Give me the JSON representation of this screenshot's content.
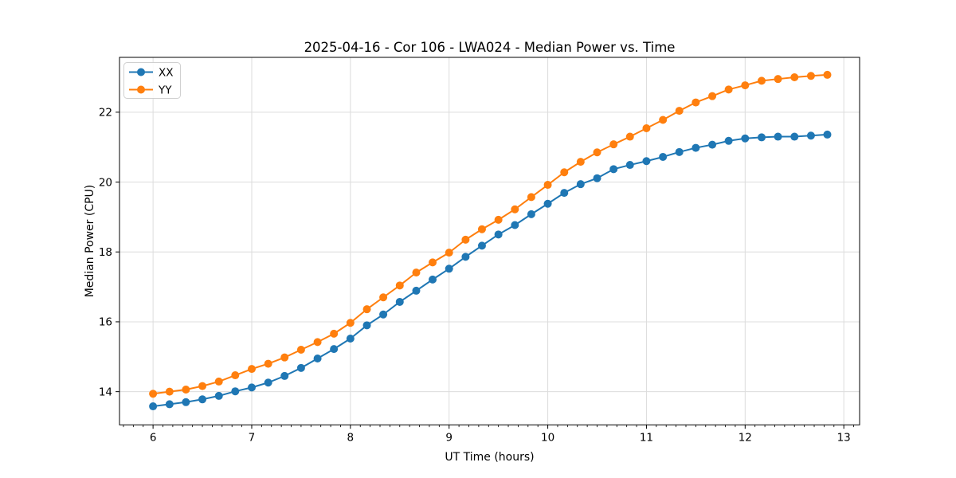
{
  "chart_data": {
    "type": "line",
    "title": "2025-04-16 - Cor 106 - LWA024 - Median Power vs. Time",
    "xlabel": "UT Time (hours)",
    "ylabel": "Median Power (CPU)",
    "xlim": [
      5.66,
      13.16
    ],
    "ylim": [
      13.05,
      23.57
    ],
    "xticks": [
      6,
      7,
      8,
      9,
      10,
      11,
      12,
      13
    ],
    "yticks": [
      14,
      16,
      18,
      20,
      22
    ],
    "x_minor_tick_step": 0.1,
    "grid": true,
    "background": "#ffffff",
    "grid_color": "#dcdcdc",
    "spine_color": "#000000",
    "legend_position": "upper left",
    "x": [
      6.0,
      6.167,
      6.333,
      6.5,
      6.667,
      6.833,
      7.0,
      7.167,
      7.333,
      7.5,
      7.667,
      7.833,
      8.0,
      8.167,
      8.333,
      8.5,
      8.667,
      8.833,
      9.0,
      9.167,
      9.333,
      9.5,
      9.667,
      9.833,
      10.0,
      10.167,
      10.333,
      10.5,
      10.667,
      10.833,
      11.0,
      11.167,
      11.333,
      11.5,
      11.667,
      11.833,
      12.0,
      12.167,
      12.333,
      12.5,
      12.667,
      12.833
    ],
    "series": [
      {
        "name": "XX",
        "color": "#1f77b4",
        "values": [
          13.58,
          13.64,
          13.7,
          13.78,
          13.88,
          14.01,
          14.12,
          14.26,
          14.45,
          14.68,
          14.95,
          15.22,
          15.52,
          15.9,
          16.21,
          16.57,
          16.89,
          17.21,
          17.52,
          17.86,
          18.18,
          18.5,
          18.77,
          19.08,
          19.38,
          19.69,
          19.94,
          20.11,
          20.37,
          20.49,
          20.6,
          20.72,
          20.86,
          20.98,
          21.07,
          21.18,
          21.25,
          21.28,
          21.3,
          21.3,
          21.33,
          21.36
        ]
      },
      {
        "name": "YY",
        "color": "#ff7f0e",
        "values": [
          13.94,
          14.0,
          14.06,
          14.16,
          14.29,
          14.47,
          14.65,
          14.8,
          14.98,
          15.2,
          15.42,
          15.66,
          15.97,
          16.36,
          16.7,
          17.04,
          17.41,
          17.7,
          17.98,
          18.35,
          18.65,
          18.92,
          19.22,
          19.57,
          19.92,
          20.28,
          20.58,
          20.85,
          21.08,
          21.3,
          21.54,
          21.78,
          22.04,
          22.28,
          22.46,
          22.65,
          22.77,
          22.9,
          22.95,
          23.0,
          23.04,
          23.07
        ]
      }
    ]
  }
}
